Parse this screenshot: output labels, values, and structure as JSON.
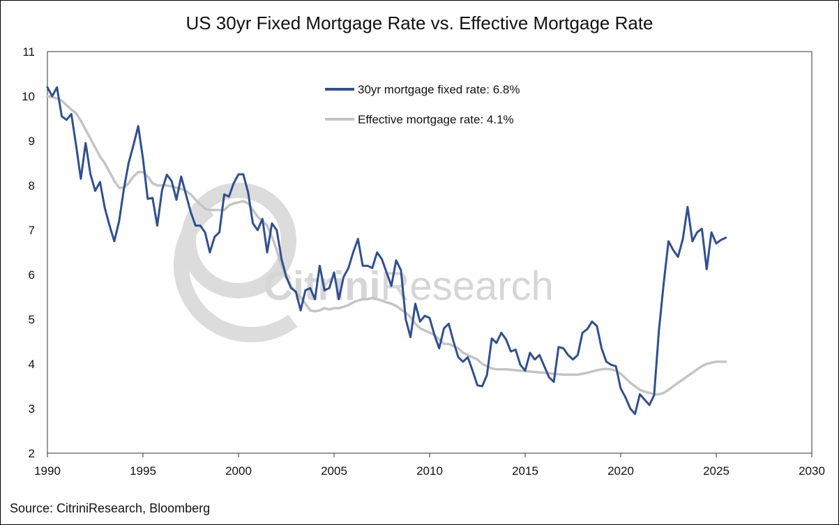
{
  "chart_data": {
    "type": "line",
    "title": "US 30yr Fixed Mortgage Rate vs. Effective Mortgage Rate",
    "source": "Source: CitriniResearch, Bloomberg",
    "watermark": "CitriniResearch",
    "watermark_parts": {
      "bold": "Citrini",
      "light": "Research"
    },
    "xlim": [
      1990,
      2030
    ],
    "ylim": [
      2,
      11
    ],
    "x_ticks": [
      1990,
      1995,
      2000,
      2005,
      2010,
      2015,
      2020,
      2025,
      2030
    ],
    "y_ticks": [
      2,
      3,
      4,
      5,
      6,
      7,
      8,
      9,
      10,
      11
    ],
    "legend_position": "top-center",
    "series": [
      {
        "name": "30yr mortgage fixed rate: 6.8%",
        "color": "#2f4f8f",
        "points": [
          [
            1990.0,
            10.2
          ],
          [
            1990.25,
            10.0
          ],
          [
            1990.5,
            10.2
          ],
          [
            1990.75,
            9.55
          ],
          [
            1991.0,
            9.47
          ],
          [
            1991.25,
            9.6
          ],
          [
            1991.5,
            8.9
          ],
          [
            1991.75,
            8.15
          ],
          [
            1992.0,
            8.95
          ],
          [
            1992.25,
            8.25
          ],
          [
            1992.5,
            7.88
          ],
          [
            1992.75,
            8.08
          ],
          [
            1993.0,
            7.5
          ],
          [
            1993.25,
            7.1
          ],
          [
            1993.5,
            6.75
          ],
          [
            1993.75,
            7.2
          ],
          [
            1994.0,
            7.92
          ],
          [
            1994.25,
            8.5
          ],
          [
            1994.5,
            8.9
          ],
          [
            1994.75,
            9.33
          ],
          [
            1995.0,
            8.6
          ],
          [
            1995.25,
            7.7
          ],
          [
            1995.5,
            7.72
          ],
          [
            1995.75,
            7.1
          ],
          [
            1996.0,
            7.9
          ],
          [
            1996.25,
            8.24
          ],
          [
            1996.5,
            8.1
          ],
          [
            1996.75,
            7.68
          ],
          [
            1997.0,
            8.2
          ],
          [
            1997.25,
            7.8
          ],
          [
            1997.5,
            7.4
          ],
          [
            1997.75,
            7.1
          ],
          [
            1998.0,
            7.1
          ],
          [
            1998.25,
            6.95
          ],
          [
            1998.5,
            6.5
          ],
          [
            1998.75,
            6.85
          ],
          [
            1999.0,
            6.95
          ],
          [
            1999.25,
            7.8
          ],
          [
            1999.5,
            7.75
          ],
          [
            1999.75,
            8.05
          ],
          [
            2000.0,
            8.25
          ],
          [
            2000.25,
            8.25
          ],
          [
            2000.5,
            7.85
          ],
          [
            2000.75,
            7.15
          ],
          [
            2001.0,
            7.0
          ],
          [
            2001.25,
            7.25
          ],
          [
            2001.5,
            6.5
          ],
          [
            2001.75,
            7.15
          ],
          [
            2002.0,
            7.0
          ],
          [
            2002.25,
            6.35
          ],
          [
            2002.5,
            5.95
          ],
          [
            2002.75,
            5.7
          ],
          [
            2003.0,
            5.62
          ],
          [
            2003.25,
            5.2
          ],
          [
            2003.5,
            5.65
          ],
          [
            2003.75,
            5.7
          ],
          [
            2004.0,
            5.45
          ],
          [
            2004.25,
            6.2
          ],
          [
            2004.5,
            5.65
          ],
          [
            2004.75,
            5.7
          ],
          [
            2005.0,
            6.05
          ],
          [
            2005.25,
            5.45
          ],
          [
            2005.5,
            5.95
          ],
          [
            2005.75,
            6.15
          ],
          [
            2006.0,
            6.5
          ],
          [
            2006.25,
            6.8
          ],
          [
            2006.5,
            6.2
          ],
          [
            2006.75,
            6.2
          ],
          [
            2007.0,
            6.15
          ],
          [
            2007.25,
            6.5
          ],
          [
            2007.5,
            6.35
          ],
          [
            2007.75,
            6.05
          ],
          [
            2008.0,
            5.75
          ],
          [
            2008.25,
            6.32
          ],
          [
            2008.5,
            6.1
          ],
          [
            2008.75,
            5.0
          ],
          [
            2009.0,
            4.6
          ],
          [
            2009.25,
            5.35
          ],
          [
            2009.5,
            4.95
          ],
          [
            2009.75,
            5.08
          ],
          [
            2010.0,
            5.03
          ],
          [
            2010.25,
            4.65
          ],
          [
            2010.5,
            4.35
          ],
          [
            2010.75,
            4.8
          ],
          [
            2011.0,
            4.9
          ],
          [
            2011.25,
            4.5
          ],
          [
            2011.5,
            4.15
          ],
          [
            2011.75,
            4.05
          ],
          [
            2012.0,
            4.15
          ],
          [
            2012.25,
            3.85
          ],
          [
            2012.5,
            3.52
          ],
          [
            2012.75,
            3.5
          ],
          [
            2013.0,
            3.75
          ],
          [
            2013.25,
            4.57
          ],
          [
            2013.5,
            4.47
          ],
          [
            2013.75,
            4.7
          ],
          [
            2014.0,
            4.55
          ],
          [
            2014.25,
            4.28
          ],
          [
            2014.5,
            4.32
          ],
          [
            2014.75,
            3.98
          ],
          [
            2015.0,
            3.85
          ],
          [
            2015.25,
            4.25
          ],
          [
            2015.5,
            4.1
          ],
          [
            2015.75,
            4.2
          ],
          [
            2016.0,
            3.95
          ],
          [
            2016.25,
            3.7
          ],
          [
            2016.5,
            3.6
          ],
          [
            2016.75,
            4.38
          ],
          [
            2017.0,
            4.35
          ],
          [
            2017.25,
            4.2
          ],
          [
            2017.5,
            4.1
          ],
          [
            2017.75,
            4.2
          ],
          [
            2018.0,
            4.7
          ],
          [
            2018.25,
            4.78
          ],
          [
            2018.5,
            4.95
          ],
          [
            2018.75,
            4.85
          ],
          [
            2019.0,
            4.35
          ],
          [
            2019.25,
            4.05
          ],
          [
            2019.5,
            3.98
          ],
          [
            2019.75,
            3.95
          ],
          [
            2020.0,
            3.45
          ],
          [
            2020.25,
            3.25
          ],
          [
            2020.5,
            3.0
          ],
          [
            2020.75,
            2.88
          ],
          [
            2021.0,
            3.32
          ],
          [
            2021.25,
            3.2
          ],
          [
            2021.5,
            3.08
          ],
          [
            2021.75,
            3.3
          ],
          [
            2022.0,
            4.75
          ],
          [
            2022.25,
            5.8
          ],
          [
            2022.5,
            6.75
          ],
          [
            2022.75,
            6.55
          ],
          [
            2023.0,
            6.4
          ],
          [
            2023.25,
            6.8
          ],
          [
            2023.5,
            7.52
          ],
          [
            2023.75,
            6.75
          ],
          [
            2024.0,
            6.95
          ],
          [
            2024.25,
            7.03
          ],
          [
            2024.5,
            6.12
          ],
          [
            2024.75,
            6.95
          ],
          [
            2025.0,
            6.7
          ],
          [
            2025.25,
            6.78
          ],
          [
            2025.5,
            6.83
          ]
        ]
      },
      {
        "name": "Effective mortgage rate: 4.1%",
        "color": "#c4c4c4",
        "points": [
          [
            1990.0,
            10.0
          ],
          [
            1990.25,
            9.98
          ],
          [
            1990.5,
            9.95
          ],
          [
            1990.75,
            9.9
          ],
          [
            1991.0,
            9.8
          ],
          [
            1991.25,
            9.7
          ],
          [
            1991.5,
            9.62
          ],
          [
            1991.75,
            9.45
          ],
          [
            1992.0,
            9.25
          ],
          [
            1992.25,
            9.05
          ],
          [
            1992.5,
            8.85
          ],
          [
            1992.75,
            8.65
          ],
          [
            1993.0,
            8.5
          ],
          [
            1993.25,
            8.3
          ],
          [
            1993.5,
            8.1
          ],
          [
            1993.75,
            7.95
          ],
          [
            1994.0,
            7.95
          ],
          [
            1994.25,
            8.05
          ],
          [
            1994.5,
            8.2
          ],
          [
            1994.75,
            8.3
          ],
          [
            1995.0,
            8.3
          ],
          [
            1995.25,
            8.2
          ],
          [
            1995.5,
            8.05
          ],
          [
            1995.75,
            8.0
          ],
          [
            1996.0,
            8.0
          ],
          [
            1996.25,
            8.0
          ],
          [
            1996.5,
            7.98
          ],
          [
            1996.75,
            7.95
          ],
          [
            1997.0,
            7.92
          ],
          [
            1997.25,
            7.88
          ],
          [
            1997.5,
            7.8
          ],
          [
            1997.75,
            7.68
          ],
          [
            1998.0,
            7.58
          ],
          [
            1998.25,
            7.48
          ],
          [
            1998.5,
            7.45
          ],
          [
            1998.75,
            7.45
          ],
          [
            1999.0,
            7.45
          ],
          [
            1999.25,
            7.45
          ],
          [
            1999.5,
            7.55
          ],
          [
            1999.75,
            7.6
          ],
          [
            2000.0,
            7.62
          ],
          [
            2000.25,
            7.65
          ],
          [
            2000.5,
            7.6
          ],
          [
            2000.75,
            7.45
          ],
          [
            2001.0,
            7.3
          ],
          [
            2001.25,
            7.2
          ],
          [
            2001.5,
            7.1
          ],
          [
            2001.75,
            6.85
          ],
          [
            2002.0,
            6.55
          ],
          [
            2002.25,
            6.2
          ],
          [
            2002.5,
            5.95
          ],
          [
            2002.75,
            5.75
          ],
          [
            2003.0,
            5.6
          ],
          [
            2003.25,
            5.5
          ],
          [
            2003.5,
            5.35
          ],
          [
            2003.75,
            5.2
          ],
          [
            2004.0,
            5.18
          ],
          [
            2004.25,
            5.2
          ],
          [
            2004.5,
            5.25
          ],
          [
            2004.75,
            5.22
          ],
          [
            2005.0,
            5.25
          ],
          [
            2005.25,
            5.25
          ],
          [
            2005.5,
            5.28
          ],
          [
            2005.75,
            5.32
          ],
          [
            2006.0,
            5.38
          ],
          [
            2006.25,
            5.42
          ],
          [
            2006.5,
            5.45
          ],
          [
            2006.75,
            5.45
          ],
          [
            2007.0,
            5.48
          ],
          [
            2007.25,
            5.45
          ],
          [
            2007.5,
            5.42
          ],
          [
            2007.75,
            5.38
          ],
          [
            2008.0,
            5.35
          ],
          [
            2008.25,
            5.3
          ],
          [
            2008.5,
            5.22
          ],
          [
            2008.75,
            5.15
          ],
          [
            2009.0,
            5.05
          ],
          [
            2009.25,
            4.9
          ],
          [
            2009.5,
            4.8
          ],
          [
            2009.75,
            4.75
          ],
          [
            2010.0,
            4.7
          ],
          [
            2010.25,
            4.65
          ],
          [
            2010.5,
            4.55
          ],
          [
            2010.75,
            4.45
          ],
          [
            2011.0,
            4.45
          ],
          [
            2011.25,
            4.4
          ],
          [
            2011.5,
            4.35
          ],
          [
            2011.75,
            4.25
          ],
          [
            2012.0,
            4.2
          ],
          [
            2012.25,
            4.15
          ],
          [
            2012.5,
            4.1
          ],
          [
            2012.75,
            4.0
          ],
          [
            2013.0,
            3.95
          ],
          [
            2013.25,
            3.9
          ],
          [
            2013.5,
            3.88
          ],
          [
            2013.75,
            3.88
          ],
          [
            2014.0,
            3.88
          ],
          [
            2014.25,
            3.87
          ],
          [
            2014.5,
            3.86
          ],
          [
            2014.75,
            3.85
          ],
          [
            2015.0,
            3.84
          ],
          [
            2015.25,
            3.83
          ],
          [
            2015.5,
            3.82
          ],
          [
            2015.75,
            3.81
          ],
          [
            2016.0,
            3.8
          ],
          [
            2016.25,
            3.79
          ],
          [
            2016.5,
            3.78
          ],
          [
            2016.75,
            3.77
          ],
          [
            2017.0,
            3.76
          ],
          [
            2017.25,
            3.76
          ],
          [
            2017.5,
            3.76
          ],
          [
            2017.75,
            3.76
          ],
          [
            2018.0,
            3.78
          ],
          [
            2018.25,
            3.8
          ],
          [
            2018.5,
            3.83
          ],
          [
            2018.75,
            3.86
          ],
          [
            2019.0,
            3.88
          ],
          [
            2019.25,
            3.89
          ],
          [
            2019.5,
            3.88
          ],
          [
            2019.75,
            3.85
          ],
          [
            2020.0,
            3.78
          ],
          [
            2020.25,
            3.68
          ],
          [
            2020.5,
            3.58
          ],
          [
            2020.75,
            3.5
          ],
          [
            2021.0,
            3.42
          ],
          [
            2021.25,
            3.38
          ],
          [
            2021.5,
            3.35
          ],
          [
            2021.75,
            3.32
          ],
          [
            2022.0,
            3.32
          ],
          [
            2022.25,
            3.35
          ],
          [
            2022.5,
            3.42
          ],
          [
            2022.75,
            3.5
          ],
          [
            2023.0,
            3.58
          ],
          [
            2023.25,
            3.65
          ],
          [
            2023.5,
            3.73
          ],
          [
            2023.75,
            3.8
          ],
          [
            2024.0,
            3.88
          ],
          [
            2024.25,
            3.95
          ],
          [
            2024.5,
            4.0
          ],
          [
            2024.75,
            4.03
          ],
          [
            2025.0,
            4.05
          ],
          [
            2025.25,
            4.05
          ],
          [
            2025.5,
            4.05
          ]
        ]
      }
    ]
  }
}
